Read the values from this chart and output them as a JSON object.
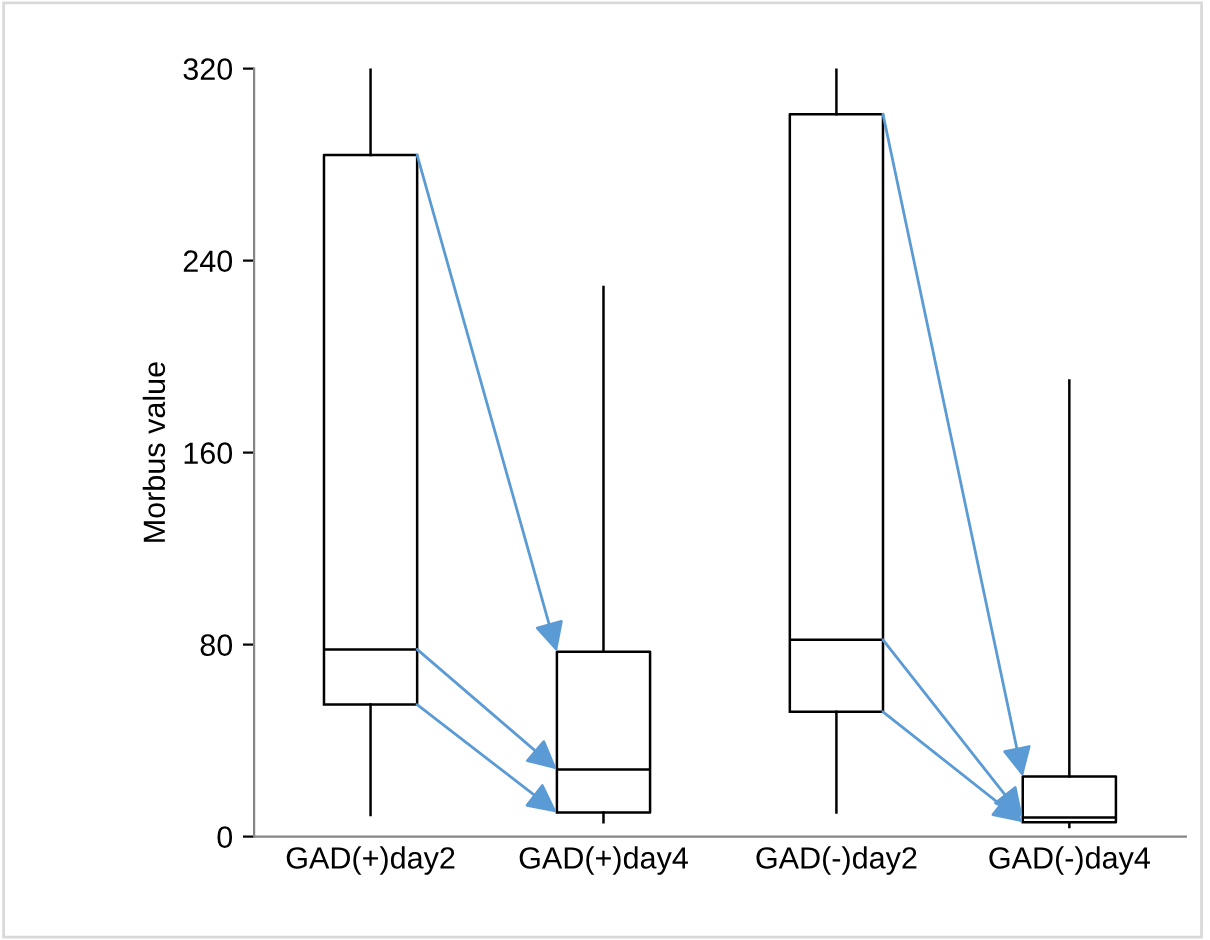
{
  "chart_data": {
    "type": "box",
    "ylabel": "Morbus value",
    "categories": [
      "GAD(+)day2",
      "GAD(+)day4",
      "GAD(-)day2",
      "GAD(-)day4"
    ],
    "boxes": [
      {
        "low": 9,
        "q1": 55,
        "median": 78,
        "q3": 284,
        "high": 320
      },
      {
        "low": 6,
        "q1": 10,
        "median": 28,
        "q3": 77,
        "high": 229
      },
      {
        "low": 10,
        "q1": 52,
        "median": 82,
        "q3": 301,
        "high": 320
      },
      {
        "low": 4,
        "q1": 6,
        "median": 8,
        "q3": 25,
        "high": 190
      }
    ],
    "color": "#000000",
    "ylim": [
      0,
      320
    ],
    "yticks": [
      0,
      80,
      160,
      240,
      320
    ],
    "grid": false,
    "legend": false
  }
}
